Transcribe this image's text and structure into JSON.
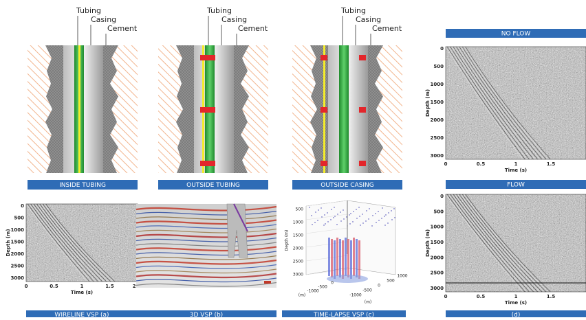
{
  "well_diagrams": [
    {
      "labels": [
        "Tubing",
        "Casing",
        "Cement"
      ],
      "caption": "INSIDE TUBING"
    },
    {
      "labels": [
        "Tubing",
        "Casing",
        "Cement"
      ],
      "caption": "OUTSIDE TUBING"
    },
    {
      "labels": [
        "Tubing",
        "Casing",
        "Cement"
      ],
      "caption": "OUTSIDE CASING"
    }
  ],
  "seismic_panels": [
    {
      "title": "NO FLOW",
      "y_label": "Depth (m)",
      "x_label": "Time (s)",
      "yticks": [
        0,
        500,
        1000,
        1500,
        2000,
        2500,
        3000
      ],
      "xticks": [
        0,
        0.5,
        1,
        1.5
      ]
    },
    {
      "title": "FLOW",
      "y_label": "Depth (m)",
      "x_label": "Time (s)",
      "yticks": [
        0,
        500,
        1000,
        1500,
        2000,
        2500,
        3000
      ],
      "xticks": [
        0,
        0.5,
        1,
        1.5
      ],
      "caption": "(d)"
    }
  ],
  "wireline": {
    "y_label": "Depth (m)",
    "x_label": "Time (s)",
    "yticks": [
      0,
      500,
      1000,
      1500,
      2000,
      2500,
      3000
    ],
    "xticks": [
      0,
      0.5,
      1,
      1.5,
      2
    ],
    "caption": "WIRELINE VSP (a)"
  },
  "vsp_3d": {
    "caption": "3D VSP (b)"
  },
  "time_lapse": {
    "z_label": "Depth (m)",
    "zticks": [
      500,
      1000,
      1500,
      2000,
      2500,
      3000
    ],
    "left_ticks": [
      0,
      -500,
      -1000
    ],
    "right_ticks": [
      -1000,
      -500,
      0,
      500,
      1000
    ],
    "unit": "(m)",
    "caption": "TIME-LAPSE VSP (c)"
  }
}
